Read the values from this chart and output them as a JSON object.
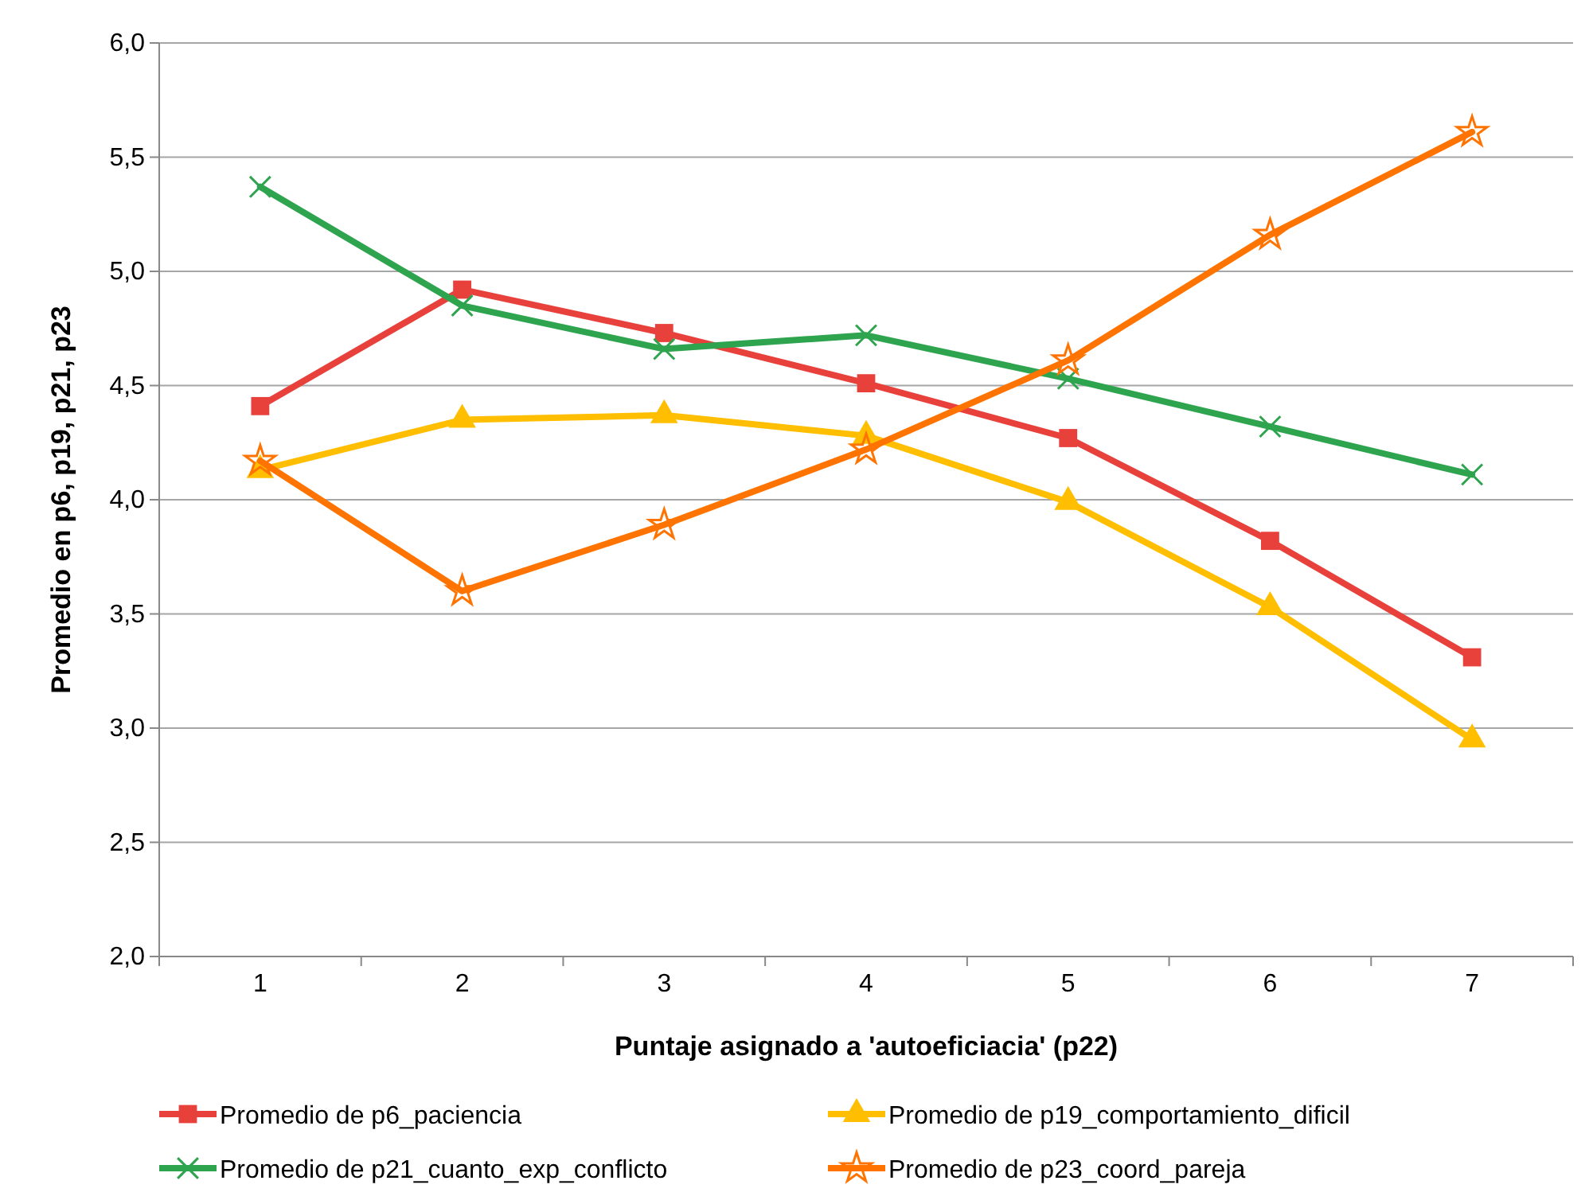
{
  "chart_data": {
    "type": "line",
    "xlabel": "Puntaje asignado a 'autoeficiacia' (p22)",
    "ylabel": "Promedio en p6, p19, p21, p23",
    "categories": [
      "1",
      "2",
      "3",
      "4",
      "5",
      "6",
      "7"
    ],
    "series": [
      {
        "name": "Promedio de p6_paciencia",
        "color": "#e8413c",
        "marker": "square",
        "values": [
          4.41,
          4.92,
          4.73,
          4.51,
          4.27,
          3.82,
          3.31
        ]
      },
      {
        "name": "Promedio de p19_comportamiento_dificil",
        "color": "#ffbf00",
        "marker": "triangle",
        "values": [
          4.13,
          4.35,
          4.37,
          4.28,
          3.99,
          3.53,
          2.95
        ]
      },
      {
        "name": "Promedio de p21_cuanto_exp_conflicto",
        "color": "#2ea44f",
        "marker": "cross",
        "values": [
          5.37,
          4.85,
          4.66,
          4.72,
          4.53,
          4.32,
          4.11
        ]
      },
      {
        "name": "Promedio de p23_coord_pareja",
        "color": "#ff7300",
        "marker": "star",
        "values": [
          4.17,
          3.6,
          3.89,
          4.22,
          4.61,
          5.16,
          5.61
        ]
      }
    ],
    "ylim": [
      2,
      6
    ],
    "yticks": [
      {
        "value": 2,
        "label": "2,0"
      },
      {
        "value": 2.5,
        "label": "2,5"
      },
      {
        "value": 3,
        "label": "3,0"
      },
      {
        "value": 3.5,
        "label": "3,5"
      },
      {
        "value": 4,
        "label": "4,0"
      },
      {
        "value": 4.5,
        "label": "4,5"
      },
      {
        "value": 5,
        "label": "5,0"
      },
      {
        "value": 5.5,
        "label": "5,5"
      },
      {
        "value": 6,
        "label": "6,0"
      }
    ],
    "grid": "y",
    "legend": "bottom",
    "line_style": "solid"
  }
}
